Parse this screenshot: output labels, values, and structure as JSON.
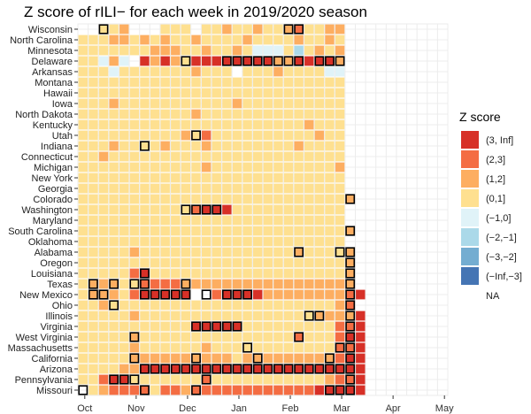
{
  "chart_data": {
    "type": "heatmap",
    "title": "Z score of rILI− for each week in 2019/2020 season",
    "xlabel": "",
    "ylabel": "",
    "x_ticks": [
      {
        "label": "Oct",
        "week": 1
      },
      {
        "label": "Nov",
        "week": 6
      },
      {
        "label": "Dec",
        "week": 11
      },
      {
        "label": "Jan",
        "week": 16
      },
      {
        "label": "Feb",
        "week": 21
      },
      {
        "label": "Mar",
        "week": 26
      },
      {
        "label": "Apr",
        "week": 31
      },
      {
        "label": "May",
        "week": 36
      }
    ],
    "weeks_total": 36,
    "weeks_with_data": 28,
    "states": [
      "Wisconsin",
      "North Carolina",
      "Minnesota",
      "Delaware",
      "Arkansas",
      "Montana",
      "Hawaii",
      "Iowa",
      "North Dakota",
      "Kentucky",
      "Utah",
      "Indiana",
      "Connecticut",
      "Michigan",
      "New York",
      "Georgia",
      "Colorado",
      "Washington",
      "Maryland",
      "South Carolina",
      "Oklahoma",
      "Alabama",
      "Oregon",
      "Louisiana",
      "Texas",
      "New Mexico",
      "Ohio",
      "Illinois",
      "Virginia",
      "West Virginia",
      "Massachusetts",
      "California",
      "Arizona",
      "Pennsylvania",
      "Missouri"
    ],
    "legend_title": "Z score",
    "legend": [
      {
        "label": "(3, Inf]",
        "color": "#d73027"
      },
      {
        "label": "(2,3]",
        "color": "#f46d43"
      },
      {
        "label": "(1,2]",
        "color": "#fdae61"
      },
      {
        "label": "(0,1]",
        "color": "#fee090"
      },
      {
        "label": "(−1,0]",
        "color": "#e0f3f8"
      },
      {
        "label": "(−2,−1]",
        "color": "#abd9e9"
      },
      {
        "label": "(−3,−2]",
        "color": "#74add1"
      },
      {
        "label": "(−Inf,−3]",
        "color": "#4575b4"
      },
      {
        "label": "NA",
        "color": ""
      }
    ],
    "rows": [
      {
        "state": "Wisconsin",
        "z": "0044300044404434434432443300",
        "box": [
          2,
          20,
          21
        ]
      },
      {
        "state": "North Carolina",
        "z": "4443343434434444344443443400",
        "box": []
      },
      {
        "state": "Minnesota",
        "z": "4444444333443443455546434300",
        "box": []
      },
      {
        "state": "Delaware",
        "z": "4453501313411111111331111300",
        "box": [
          10,
          14,
          15,
          16,
          17,
          18,
          19,
          20,
          21,
          23,
          24,
          25
        ]
      },
      {
        "state": "Arkansas",
        "z": "4445444444434449444344445500",
        "box": []
      },
      {
        "state": "Montana",
        "z": "4444444444444444444444444400",
        "box": []
      },
      {
        "state": "Hawaii",
        "z": "4444444444444444444444444400",
        "box": []
      },
      {
        "state": "Iowa",
        "z": "4443444444444443444444444400",
        "box": []
      },
      {
        "state": "North Dakota",
        "z": "4444444444434444444444444400",
        "box": []
      },
      {
        "state": "Kentucky",
        "z": "4444444444444444444444344400",
        "box": []
      },
      {
        "state": "Utah",
        "z": "4444444444342444444444434400",
        "box": [
          11
        ]
      },
      {
        "state": "Indiana",
        "z": "4443444434443444444443444400",
        "box": [
          6
        ]
      },
      {
        "state": "Connecticut",
        "z": "4434444444444444444444444400",
        "box": []
      },
      {
        "state": "Michigan",
        "z": "4444444444443444444444444300",
        "box": []
      },
      {
        "state": "New York",
        "z": "4444444444444444444444444400",
        "box": []
      },
      {
        "state": "Georgia",
        "z": "4444444444444444444444444400",
        "box": []
      },
      {
        "state": "Colorado",
        "z": "4444444444444444444444444430",
        "box": [
          26
        ]
      },
      {
        "state": "Washington",
        "z": "4444444444421114444444444400",
        "box": [
          10,
          11,
          12,
          13
        ]
      },
      {
        "state": "Maryland",
        "z": "4444444444444444444444444400",
        "box": []
      },
      {
        "state": "South Carolina",
        "z": "4444444444444444444444444430",
        "box": [
          26
        ]
      },
      {
        "state": "Oklahoma",
        "z": "4444444444444444444444444400",
        "box": []
      },
      {
        "state": "Alabama",
        "z": "4444434444444444444443444430",
        "box": [
          21,
          25,
          26
        ]
      },
      {
        "state": "Oregon",
        "z": "4444444444444444444444444430",
        "box": [
          26
        ]
      },
      {
        "state": "Louisiana",
        "z": "4444421444444444444444444430",
        "box": [
          6,
          26
        ]
      },
      {
        "state": "Texas",
        "z": "4333442222333333333333333330",
        "box": [
          1,
          3,
          5,
          6,
          10,
          26
        ]
      },
      {
        "state": "New Mexico",
        "z": "4333421111190211113333333321",
        "box": [
          1,
          2,
          6,
          7,
          8,
          9,
          10,
          12,
          14,
          15,
          16,
          26
        ]
      },
      {
        "state": "Ohio",
        "z": "4434444444444444444444444320",
        "box": [
          3,
          26
        ]
      },
      {
        "state": "Illinois",
        "z": "4444434444444444444444433331",
        "box": [
          22,
          23,
          26
        ]
      },
      {
        "state": "Virginia",
        "z": "4444444444411111444444444221",
        "box": [
          11,
          12,
          13,
          14,
          15,
          26
        ]
      },
      {
        "state": "West Virginia",
        "z": "4444434444444444444442444211",
        "box": [
          5,
          21,
          26
        ]
      },
      {
        "state": "Massachusetts",
        "z": "4444434444443444444444444221",
        "box": [
          16,
          25,
          26
        ]
      },
      {
        "state": "California",
        "z": "4444433333333334333333333211",
        "box": [
          5,
          11,
          17,
          24,
          26
        ]
      },
      {
        "state": "Arizona",
        "z": "4444331111111111111111111111",
        "box": [
          6,
          7,
          8,
          9,
          10,
          11,
          12,
          13,
          14,
          15,
          16,
          17,
          18,
          19,
          20,
          21,
          22,
          23,
          24,
          25,
          26
        ]
      },
      {
        "state": "Pennsylvania",
        "z": "4421144444442444444444443221",
        "box": [
          3,
          4,
          5,
          12,
          26
        ]
      },
      {
        "state": "Missouri",
        "z": "0432222422322222222222211111",
        "box": [
          0,
          6,
          11,
          24,
          25,
          26
        ]
      }
    ]
  }
}
